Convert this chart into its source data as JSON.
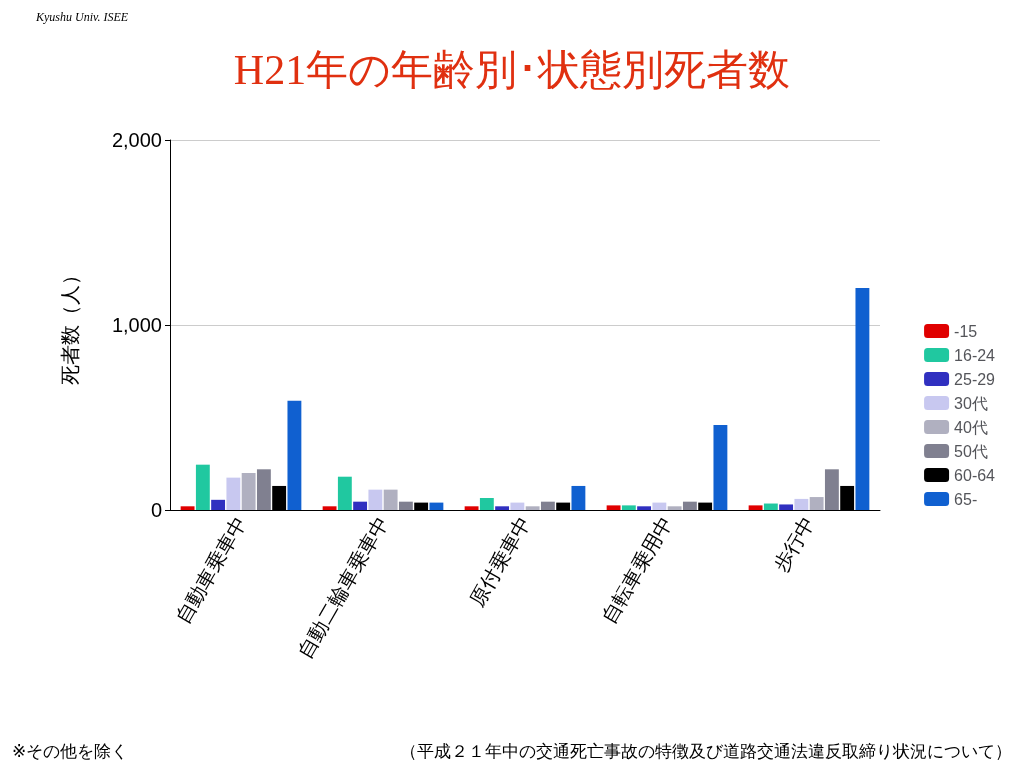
{
  "chart_data": {
    "type": "bar",
    "title": "H21年の年齢別･状態別死者数",
    "ylabel": "死者数（人）",
    "categories": [
      "自動車乗車中",
      "自動二輪車乗車中",
      "原付乗車中",
      "自転車乗用中",
      "歩行中"
    ],
    "series": [
      {
        "name": "-15",
        "color": "#e00000",
        "values": [
          20,
          20,
          20,
          25,
          25
        ]
      },
      {
        "name": "16-24",
        "color": "#20c8a0",
        "values": [
          245,
          180,
          65,
          25,
          35
        ]
      },
      {
        "name": "25-29",
        "color": "#3030c0",
        "values": [
          55,
          45,
          20,
          20,
          30
        ]
      },
      {
        "name": "30代",
        "color": "#c8c8f0",
        "values": [
          175,
          110,
          40,
          40,
          60
        ]
      },
      {
        "name": "40代",
        "color": "#b0b0c0",
        "values": [
          200,
          110,
          20,
          20,
          70
        ]
      },
      {
        "name": "50代",
        "color": "#808090",
        "values": [
          220,
          45,
          45,
          45,
          220
        ]
      },
      {
        "name": "60-64",
        "color": "#000000",
        "values": [
          130,
          40,
          40,
          40,
          130
        ]
      },
      {
        "name": "65-",
        "color": "#1060d0",
        "values": [
          590,
          40,
          130,
          460,
          1200
        ]
      }
    ],
    "ylim": [
      0,
      2000
    ],
    "yticks": [
      0,
      {
        "value": 1000,
        "label": "1,000"
      },
      {
        "value": 2000,
        "label": "2,000"
      }
    ],
    "grid": "y",
    "legend": "right",
    "annotations": [
      "Kyushu Univ. ISEE",
      "※その他を除く",
      "（平成２１年中の交通死亡事故の特徴及び道路交通法違反取締り状況について）"
    ]
  }
}
